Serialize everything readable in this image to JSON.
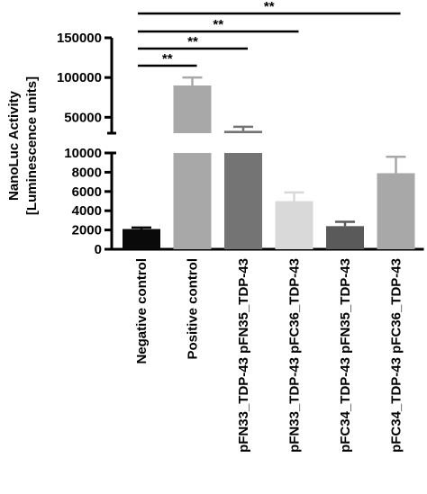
{
  "chart_data": {
    "type": "bar",
    "title": "",
    "xlabel": "",
    "ylabel_line1": "NanoLuc Activity",
    "ylabel_line2": "[Luminescence units]",
    "axis_break": {
      "lower_range": [
        0,
        10000
      ],
      "upper_range": [
        30000,
        150000
      ]
    },
    "lower_ticks": [
      0,
      2000,
      4000,
      6000,
      8000,
      10000
    ],
    "upper_ticks": [
      50000,
      100000,
      150000
    ],
    "categories": [
      "Negative control",
      "Positive control",
      "pFN33_TDP-43 pFN35_TDP-43",
      "pFN33_TDP-43 pFC36_TDP-43",
      "pFC34_TDP-43 pFN35_TDP-43",
      "pFC34_TDP-43 pFC36_TDP-43"
    ],
    "values": [
      2100,
      90000,
      33000,
      5000,
      2400,
      7900
    ],
    "errors": [
      150,
      10000,
      5000,
      900,
      450,
      1700
    ],
    "colors": [
      "#0a0a0a",
      "#a8a8a8",
      "#747474",
      "#d9d9d9",
      "#5a5a5a",
      "#a8a8a8"
    ],
    "significance": [
      {
        "from": 0,
        "to": 1,
        "label": "**"
      },
      {
        "from": 0,
        "to": 2,
        "label": "**"
      },
      {
        "from": 0,
        "to": 3,
        "label": "**"
      },
      {
        "from": 0,
        "to": 5,
        "label": "**"
      }
    ]
  }
}
